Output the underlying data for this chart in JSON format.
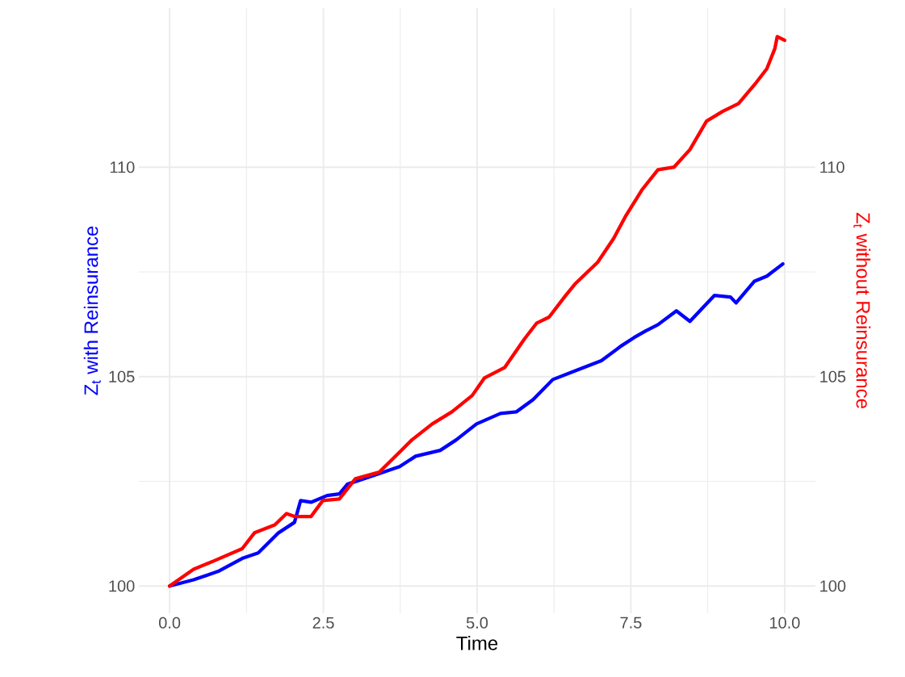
{
  "chart_data": {
    "type": "line",
    "xlabel": "Time",
    "ylabel": "Z$_{t}$ with Reinsurance",
    "y2label": "Z$_{t}$ without Reinsurance",
    "xlim": [
      -0.5,
      10.5
    ],
    "ylim": [
      99.35,
      113.8
    ],
    "y2lim": [
      99.35,
      113.8
    ],
    "xticks": [
      {
        "value": 0,
        "label": "0.0"
      },
      2.5,
      {
        "value": 5,
        "label": "5.0"
      },
      7.5,
      {
        "value": 10,
        "label": "10.0"
      }
    ],
    "yticks": [
      100,
      105,
      110
    ],
    "y2ticks": [
      100,
      105,
      110
    ],
    "grid": true,
    "series": [
      {
        "color": "#0000ff",
        "x": [
          0,
          0.39,
          0.79,
          1.18,
          1.44,
          1.77,
          2.03,
          2.13,
          2.3,
          2.56,
          2.76,
          2.89,
          3.28,
          3.74,
          4.0,
          4.4,
          4.66,
          4.99,
          5.38,
          5.64,
          5.91,
          6.23,
          6.63,
          7.02,
          7.35,
          7.55,
          7.74,
          7.94,
          8.24,
          8.46,
          8.86,
          9.12,
          9.21,
          9.51,
          9.71,
          9.97
        ],
        "values": [
          100,
          100.15,
          100.35,
          100.66,
          100.79,
          101.27,
          101.52,
          102.04,
          102.0,
          102.16,
          102.2,
          102.43,
          102.62,
          102.85,
          103.1,
          103.24,
          103.49,
          103.87,
          104.12,
          104.16,
          104.45,
          104.93,
          105.16,
          105.38,
          105.74,
          105.93,
          106.09,
          106.24,
          106.57,
          106.32,
          106.94,
          106.9,
          106.76,
          107.28,
          107.4,
          107.69
        ]
      },
      {
        "color": "#ff0000",
        "axis": "y2",
        "x": [
          0,
          0.39,
          0.72,
          1.18,
          1.38,
          1.71,
          1.9,
          2.03,
          2.3,
          2.49,
          2.76,
          3.02,
          3.41,
          3.74,
          3.94,
          4.27,
          4.59,
          4.92,
          5.12,
          5.45,
          5.77,
          5.97,
          6.17,
          6.43,
          6.59,
          6.96,
          7.22,
          7.41,
          7.68,
          7.94,
          8.2,
          8.46,
          8.73,
          8.99,
          9.25,
          9.51,
          9.71,
          9.84,
          9.88,
          10.0
        ],
        "values": [
          100,
          100.4,
          100.6,
          100.89,
          101.27,
          101.46,
          101.73,
          101.66,
          101.66,
          102.04,
          102.08,
          102.56,
          102.72,
          103.2,
          103.49,
          103.87,
          104.16,
          104.55,
          104.97,
          105.22,
          105.9,
          106.28,
          106.42,
          106.92,
          107.21,
          107.73,
          108.3,
          108.82,
          109.46,
          109.94,
          110.0,
          110.42,
          111.1,
          111.33,
          111.52,
          111.97,
          112.35,
          112.83,
          113.12,
          113.03
        ]
      }
    ]
  }
}
